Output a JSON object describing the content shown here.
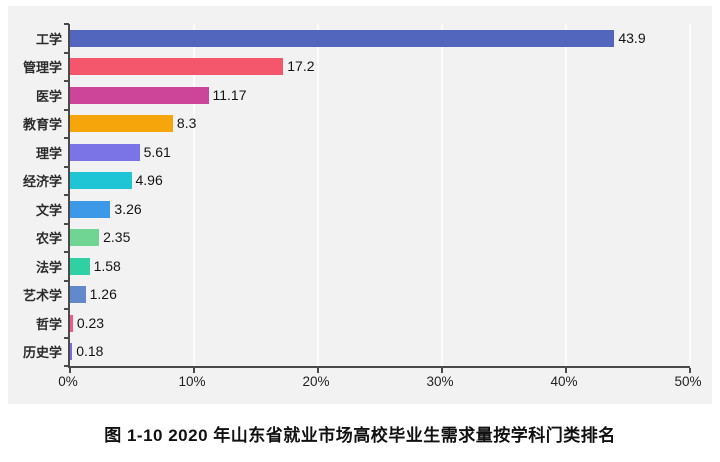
{
  "figure": {
    "caption": "图 1-10 2020 年山东省就业市场高校毕业生需求量按学科门类排名"
  },
  "chart_data": {
    "type": "bar",
    "orientation": "horizontal",
    "title": "",
    "xlabel": "",
    "ylabel": "",
    "categories": [
      "工学",
      "管理学",
      "医学",
      "教育学",
      "理学",
      "经济学",
      "文学",
      "农学",
      "法学",
      "艺术学",
      "哲学",
      "历史学"
    ],
    "values": [
      43.9,
      17.2,
      11.17,
      8.3,
      5.61,
      4.96,
      3.26,
      2.35,
      1.58,
      1.26,
      0.23,
      0.18
    ],
    "value_labels": [
      "43.9",
      "17.2",
      "11.17",
      "8.3",
      "5.61",
      "4.96",
      "3.26",
      "2.35",
      "1.58",
      "1.26",
      "0.23",
      "0.18"
    ],
    "bar_colors": [
      "#5366bd",
      "#f4566b",
      "#cc4598",
      "#f6a60b",
      "#7b74e6",
      "#1fc5d5",
      "#3b99e8",
      "#70d592",
      "#30cfa4",
      "#6189cb",
      "#ee5a8d",
      "#7c6bd9"
    ],
    "x_ticks": [
      "0%",
      "10%",
      "20%",
      "30%",
      "40%",
      "50%"
    ],
    "x_tick_values": [
      0,
      10,
      20,
      30,
      40,
      50
    ],
    "xlim": [
      0,
      50
    ],
    "grid": true,
    "legend": false,
    "panel_bg": "#f2f2f2",
    "axis_color": "#4a4a4a"
  }
}
